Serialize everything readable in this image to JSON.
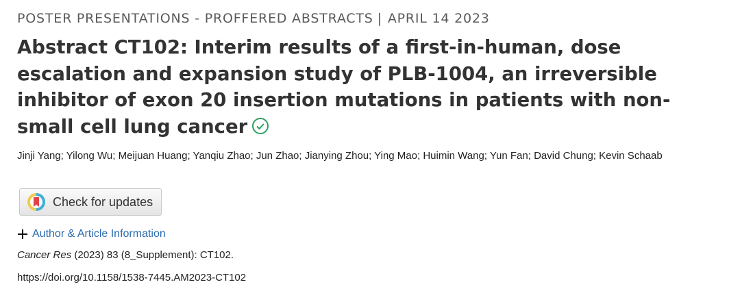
{
  "header": {
    "section": "POSTER PRESENTATIONS - PROFFERED ABSTRACTS",
    "separator": "|",
    "date": "APRIL 14 2023"
  },
  "article": {
    "title": "Abstract CT102: Interim results of a first-in-human, dose escalation and expansion study of PLB-1004, an irreversible inhibitor of exon 20 insertion mutations in patients with non-small cell lung cancer",
    "authors": "Jinji Yang; Yilong Wu; Meijuan Huang; Yanqiu Zhao; Jun Zhao; Jianying Zhou; Ying Mao; Huimin Wang; Yun Fan; David Chung; Kevin Schaab",
    "check_updates": "Check for updates",
    "info_link": "Author & Article Information",
    "citation": {
      "journal": "Cancer Res",
      "details": "(2023) 83 (8_Supplement): CT102."
    },
    "doi": "https://doi.org/10.1158/1538-7445.AM2023-CT102"
  }
}
